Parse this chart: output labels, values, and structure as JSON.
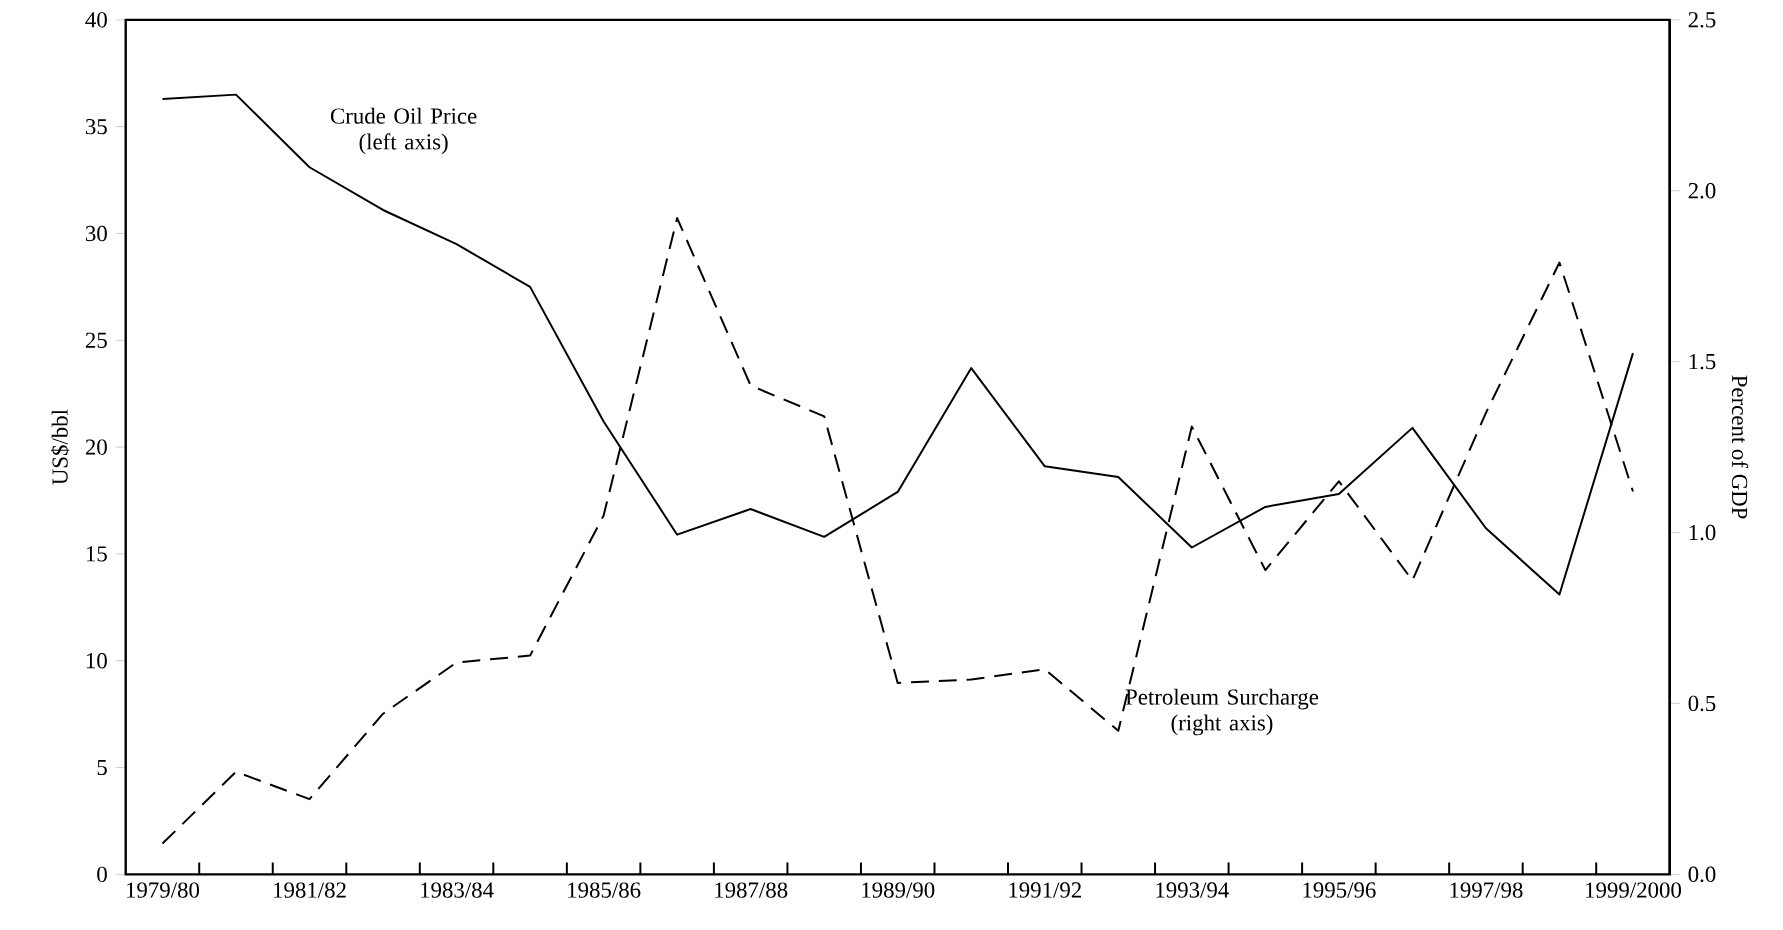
{
  "chart_data": {
    "type": "line",
    "categories": [
      "1979/80",
      null,
      "1981/82",
      null,
      "1983/84",
      null,
      "1985/86",
      null,
      "1987/88",
      null,
      "1989/90",
      null,
      "1991/92",
      null,
      "1993/94",
      null,
      "1995/96",
      null,
      "1997/98",
      null,
      "1999/2000"
    ],
    "series": [
      {
        "name": "Crude Oil Price (left axis)",
        "color": "#000000",
        "line_style": "solid",
        "axis": "y",
        "values": [
          36.3,
          36.5,
          33.1,
          31.1,
          29.5,
          27.5,
          21.2,
          15.9,
          17.1,
          15.8,
          17.9,
          23.7,
          19.1,
          18.6,
          15.3,
          17.2,
          17.8,
          20.9,
          16.2,
          13.1,
          24.4
        ]
      },
      {
        "name": "Petroleum Surcharge (right axis)",
        "color": "#000000",
        "line_style": "dashed",
        "axis": "y2",
        "values": [
          0.09,
          0.3,
          0.22,
          0.47,
          0.62,
          0.64,
          1.05,
          1.92,
          1.43,
          1.34,
          0.56,
          0.57,
          0.6,
          0.42,
          1.31,
          0.89,
          1.15,
          0.86,
          1.35,
          1.79,
          1.12
        ]
      }
    ],
    "ylabel": "US$/bbl",
    "y2label": "Percent of GDP",
    "ylim": [
      0,
      40
    ],
    "yticks": [
      0,
      5,
      10,
      15,
      20,
      25,
      30,
      35,
      40
    ],
    "y2lim": [
      0,
      2.5
    ],
    "y2ticks": [
      {
        "value": 0,
        "label": "0.0"
      },
      {
        "value": 0.5,
        "label": "0.5"
      },
      {
        "value": 1,
        "label": "1.0"
      },
      {
        "value": 1.5,
        "label": "1.5"
      },
      {
        "value": 2,
        "label": "2.0"
      },
      {
        "value": 2.5,
        "label": "2.5"
      }
    ]
  }
}
